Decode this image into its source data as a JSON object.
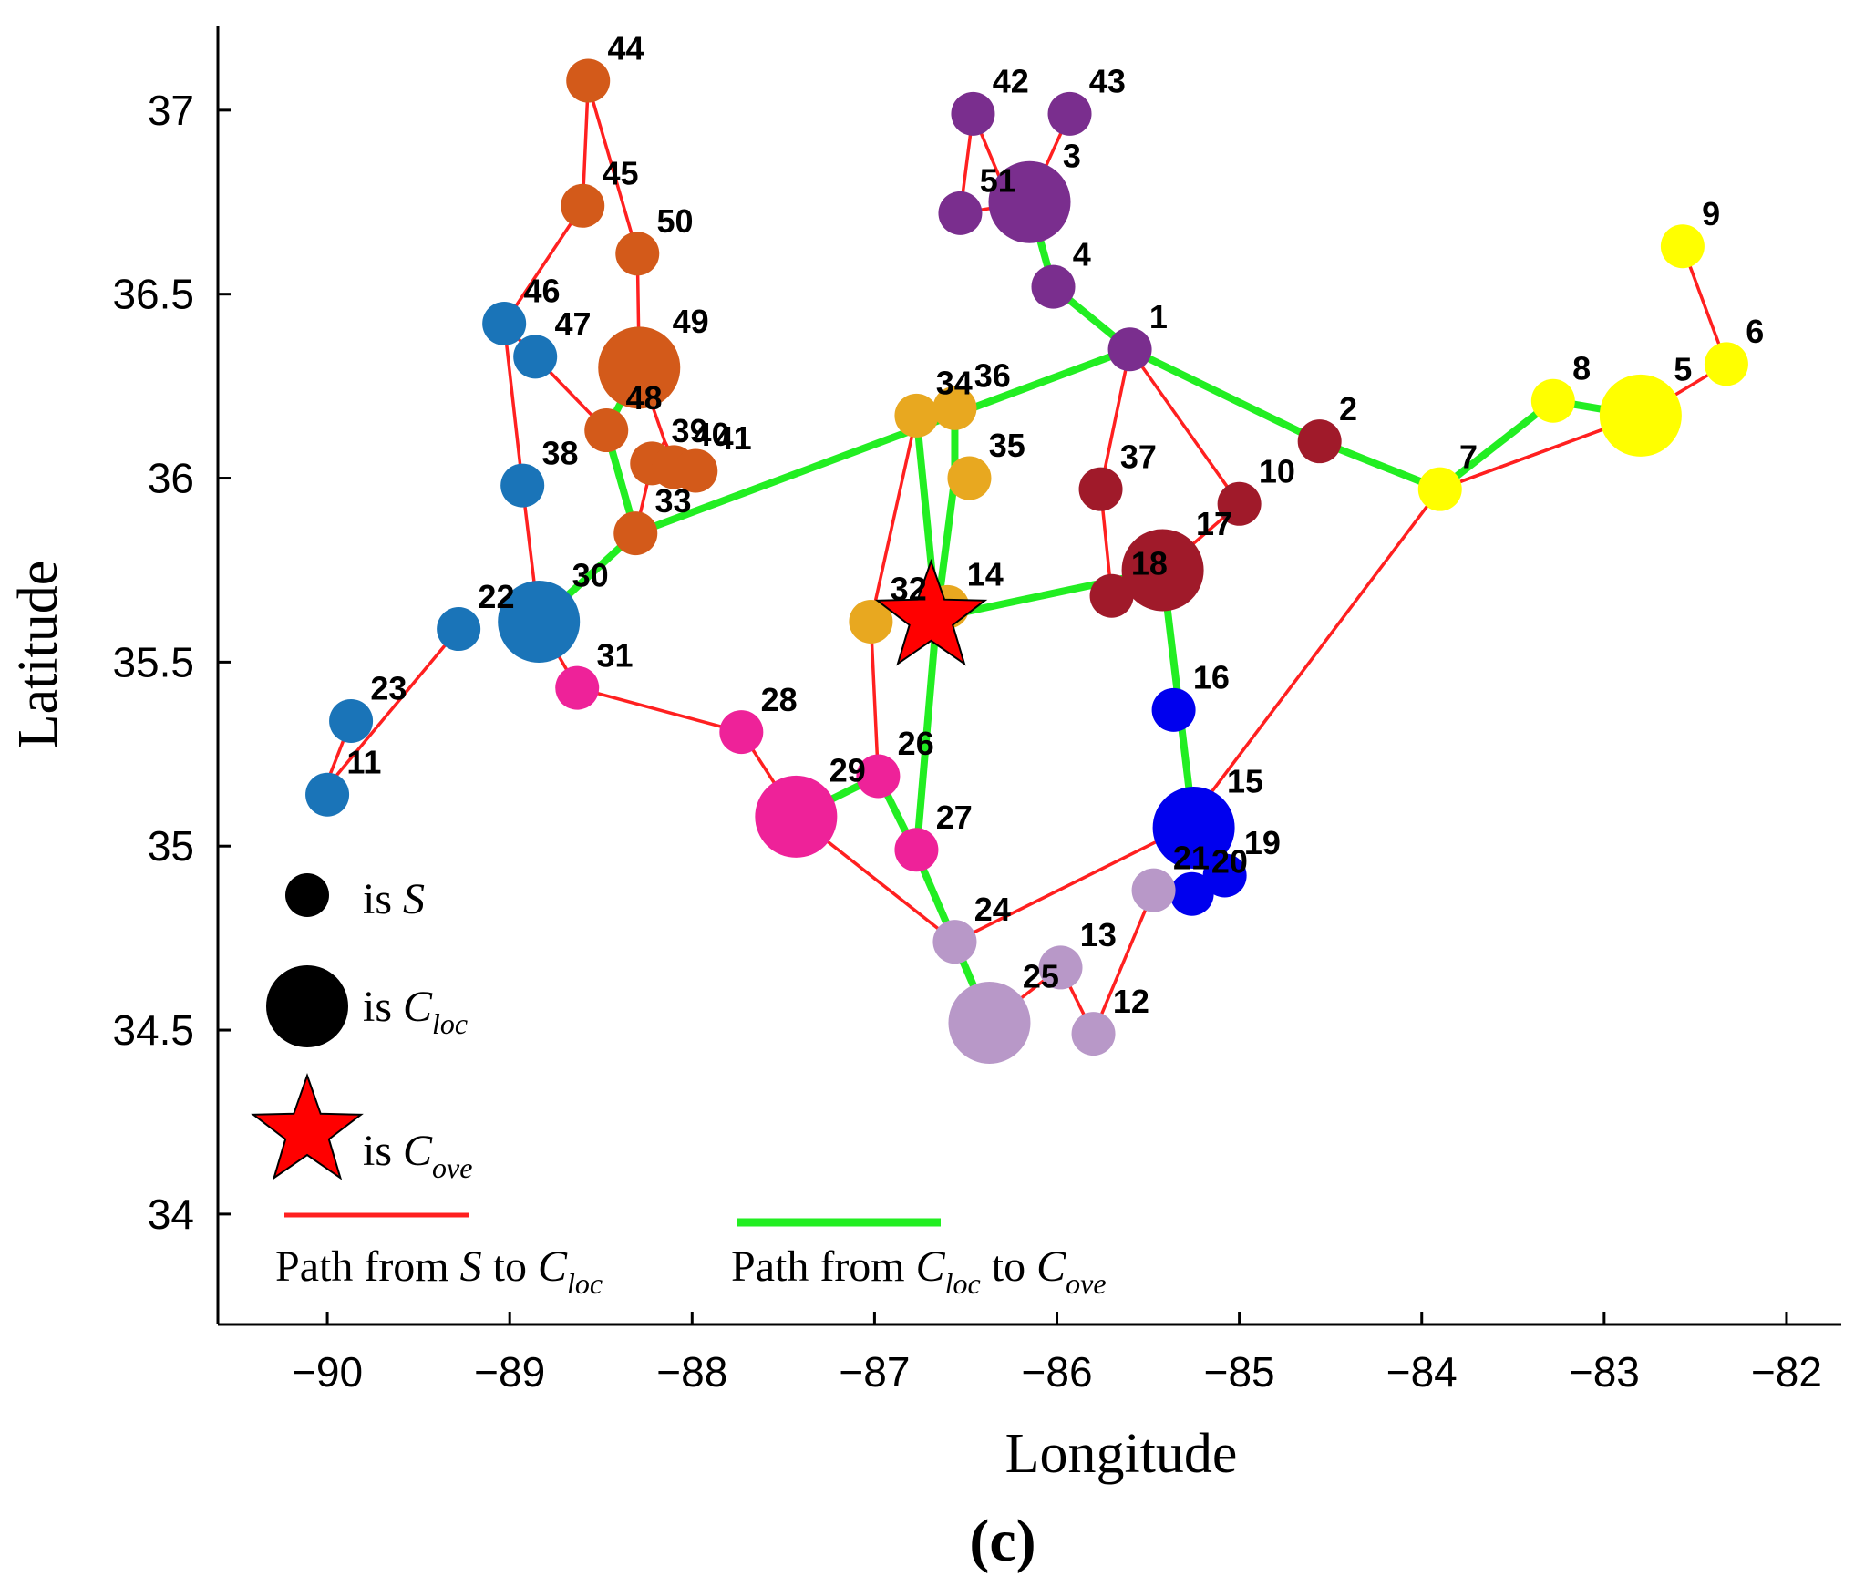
{
  "chart_data": {
    "type": "scatter",
    "title": "",
    "xlabel": "Longitude",
    "ylabel": "Latitude",
    "xlim": [
      -90.6,
      -81.7
    ],
    "ylim": [
      33.7,
      37.23
    ],
    "x_ticks": [
      -90,
      -89,
      -88,
      -87,
      -86,
      -85,
      -84,
      -83,
      -82
    ],
    "x_tick_labels": [
      "−90",
      "−89",
      "−88",
      "−87",
      "−86",
      "−85",
      "−84",
      "−83",
      "−82"
    ],
    "y_ticks": [
      34,
      34.5,
      35,
      35.5,
      36,
      36.5,
      37
    ],
    "y_tick_labels": [
      "34",
      "34.5",
      "35",
      "35.5",
      "36",
      "36.5",
      "37"
    ],
    "panel_label": "(c)",
    "nodes": [
      {
        "id": "1",
        "x": -85.6,
        "y": 36.35,
        "size": "S",
        "color": "#7a2e8e"
      },
      {
        "id": "2",
        "x": -84.56,
        "y": 36.1,
        "size": "S",
        "color": "#a01a2a"
      },
      {
        "id": "3",
        "x": -86.15,
        "y": 36.75,
        "size": "C",
        "color": "#7a2e8e"
      },
      {
        "id": "4",
        "x": -86.02,
        "y": 36.52,
        "size": "S",
        "color": "#7a2e8e"
      },
      {
        "id": "5",
        "x": -82.8,
        "y": 36.17,
        "size": "C",
        "color": "#ffff00"
      },
      {
        "id": "6",
        "x": -82.33,
        "y": 36.31,
        "size": "S",
        "color": "#ffff00"
      },
      {
        "id": "7",
        "x": -83.9,
        "y": 35.97,
        "size": "S",
        "color": "#ffff00"
      },
      {
        "id": "8",
        "x": -83.28,
        "y": 36.21,
        "size": "S",
        "color": "#ffff00"
      },
      {
        "id": "9",
        "x": -82.57,
        "y": 36.63,
        "size": "S",
        "color": "#ffff00"
      },
      {
        "id": "10",
        "x": -85.0,
        "y": 35.93,
        "size": "S",
        "color": "#a01a2a"
      },
      {
        "id": "11",
        "x": -90.0,
        "y": 35.14,
        "size": "S",
        "color": "#1a74b8"
      },
      {
        "id": "12",
        "x": -85.8,
        "y": 34.49,
        "size": "S",
        "color": "#b898c8"
      },
      {
        "id": "13",
        "x": -85.98,
        "y": 34.67,
        "size": "S",
        "color": "#b898c8"
      },
      {
        "id": "14",
        "x": -86.6,
        "y": 35.65,
        "size": "S",
        "color": "#e8a820"
      },
      {
        "id": "15",
        "x": -85.25,
        "y": 35.05,
        "size": "C",
        "color": "#0000ee"
      },
      {
        "id": "16",
        "x": -85.36,
        "y": 35.37,
        "size": "S",
        "color": "#0000ee"
      },
      {
        "id": "17",
        "x": -85.42,
        "y": 35.75,
        "size": "C",
        "color": "#a01a2a"
      },
      {
        "id": "18",
        "x": -85.7,
        "y": 35.68,
        "size": "S",
        "color": "#a01a2a"
      },
      {
        "id": "19",
        "x": -85.08,
        "y": 34.92,
        "size": "S",
        "color": "#0000ee"
      },
      {
        "id": "20",
        "x": -85.26,
        "y": 34.87,
        "size": "S",
        "color": "#0000ee"
      },
      {
        "id": "21",
        "x": -85.47,
        "y": 34.88,
        "size": "S",
        "color": "#b898c8"
      },
      {
        "id": "22",
        "x": -89.28,
        "y": 35.59,
        "size": "S",
        "color": "#1a74b8"
      },
      {
        "id": "23",
        "x": -89.87,
        "y": 35.34,
        "size": "S",
        "color": "#1a74b8"
      },
      {
        "id": "24",
        "x": -86.56,
        "y": 34.74,
        "size": "S",
        "color": "#b898c8"
      },
      {
        "id": "25",
        "x": -86.37,
        "y": 34.52,
        "size": "C",
        "color": "#b898c8"
      },
      {
        "id": "26",
        "x": -86.98,
        "y": 35.19,
        "size": "S",
        "color": "#ee2299"
      },
      {
        "id": "27",
        "x": -86.77,
        "y": 34.99,
        "size": "S",
        "color": "#ee2299"
      },
      {
        "id": "28",
        "x": -87.73,
        "y": 35.31,
        "size": "S",
        "color": "#ee2299"
      },
      {
        "id": "29",
        "x": -87.43,
        "y": 35.08,
        "size": "C",
        "color": "#ee2299"
      },
      {
        "id": "30",
        "x": -88.84,
        "y": 35.61,
        "size": "C",
        "color": "#1a74b8"
      },
      {
        "id": "31",
        "x": -88.63,
        "y": 35.43,
        "size": "S",
        "color": "#ee2299"
      },
      {
        "id": "32",
        "x": -87.02,
        "y": 35.61,
        "size": "S",
        "color": "#e8a820"
      },
      {
        "id": "33",
        "x": -88.31,
        "y": 35.85,
        "size": "S",
        "color": "#d35a1a"
      },
      {
        "id": "34",
        "x": -86.77,
        "y": 36.17,
        "size": "S",
        "color": "#e8a820"
      },
      {
        "id": "35",
        "x": -86.48,
        "y": 36.0,
        "size": "S",
        "color": "#e8a820"
      },
      {
        "id": "36",
        "x": -86.56,
        "y": 36.19,
        "size": "S",
        "color": "#e8a820"
      },
      {
        "id": "37",
        "x": -85.76,
        "y": 35.97,
        "size": "S",
        "color": "#a01a2a"
      },
      {
        "id": "38",
        "x": -88.93,
        "y": 35.98,
        "size": "S",
        "color": "#1a74b8"
      },
      {
        "id": "39",
        "x": -88.22,
        "y": 36.04,
        "size": "S",
        "color": "#d35a1a"
      },
      {
        "id": "40",
        "x": -88.1,
        "y": 36.03,
        "size": "S",
        "color": "#d35a1a"
      },
      {
        "id": "41",
        "x": -87.98,
        "y": 36.02,
        "size": "S",
        "color": "#d35a1a"
      },
      {
        "id": "42",
        "x": -86.46,
        "y": 36.99,
        "size": "S",
        "color": "#7a2e8e"
      },
      {
        "id": "43",
        "x": -85.93,
        "y": 36.99,
        "size": "S",
        "color": "#7a2e8e"
      },
      {
        "id": "44",
        "x": -88.57,
        "y": 37.08,
        "size": "S",
        "color": "#d35a1a"
      },
      {
        "id": "45",
        "x": -88.6,
        "y": 36.74,
        "size": "S",
        "color": "#d35a1a"
      },
      {
        "id": "46",
        "x": -89.03,
        "y": 36.42,
        "size": "S",
        "color": "#1a74b8"
      },
      {
        "id": "47",
        "x": -88.86,
        "y": 36.33,
        "size": "S",
        "color": "#1a74b8"
      },
      {
        "id": "48",
        "x": -88.47,
        "y": 36.13,
        "size": "S",
        "color": "#d35a1a"
      },
      {
        "id": "49",
        "x": -88.29,
        "y": 36.3,
        "size": "C",
        "color": "#d35a1a"
      },
      {
        "id": "50",
        "x": -88.3,
        "y": 36.61,
        "size": "S",
        "color": "#d35a1a"
      },
      {
        "id": "51",
        "x": -86.53,
        "y": 36.72,
        "size": "S",
        "color": "#7a2e8e"
      }
    ],
    "star": {
      "x": -86.69,
      "y": 35.62,
      "color": "#ff0000"
    },
    "red_paths": [
      [
        [
          -88.57,
          37.07
        ],
        [
          -88.6,
          36.74
        ],
        [
          -89.03,
          36.42
        ],
        [
          -88.86,
          36.33
        ],
        [
          -88.47,
          36.13
        ]
      ],
      [
        [
          -88.57,
          37.07
        ],
        [
          -88.3,
          36.61
        ],
        [
          -88.29,
          36.3
        ],
        [
          -88.15,
          36.1
        ],
        [
          -88.1,
          36.05
        ],
        [
          -87.98,
          36.02
        ]
      ],
      [
        [
          -88.15,
          36.1
        ],
        [
          -88.22,
          36.04
        ],
        [
          -88.31,
          35.85
        ]
      ],
      [
        [
          -89.03,
          36.42
        ],
        [
          -88.93,
          35.98
        ],
        [
          -88.84,
          35.61
        ],
        [
          -88.63,
          35.43
        ],
        [
          -87.73,
          35.31
        ],
        [
          -87.43,
          35.08
        ],
        [
          -86.56,
          34.74
        ],
        [
          -85.3,
          35.05
        ],
        [
          -83.9,
          35.97
        ],
        [
          -82.8,
          36.17
        ],
        [
          -82.33,
          36.31
        ],
        [
          -82.57,
          36.63
        ]
      ],
      [
        [
          -83.9,
          35.97
        ],
        [
          -82.8,
          36.17
        ]
      ],
      [
        [
          -89.28,
          35.59
        ],
        [
          -90.02,
          35.15
        ],
        [
          -89.87,
          35.34
        ]
      ],
      [
        [
          -86.77,
          36.17
        ],
        [
          -86.56,
          36.22
        ]
      ],
      [
        [
          -86.77,
          36.17
        ],
        [
          -87.02,
          35.61
        ],
        [
          -86.98,
          35.19
        ],
        [
          -86.77,
          34.99
        ],
        [
          -86.56,
          34.74
        ]
      ],
      [
        [
          -86.37,
          34.52
        ],
        [
          -85.98,
          34.67
        ],
        [
          -85.8,
          34.49
        ],
        [
          -85.47,
          34.88
        ],
        [
          -85.26,
          34.87
        ],
        [
          -85.08,
          34.92
        ],
        [
          -85.3,
          35.05
        ]
      ],
      [
        [
          -85.6,
          36.35
        ],
        [
          -85.76,
          35.97
        ],
        [
          -85.7,
          35.68
        ]
      ],
      [
        [
          -85.6,
          36.35
        ],
        [
          -85.0,
          35.93
        ],
        [
          -85.42,
          35.75
        ]
      ],
      [
        [
          -86.46,
          36.99
        ],
        [
          -86.53,
          36.72
        ],
        [
          -86.15,
          36.75
        ],
        [
          -85.93,
          36.99
        ]
      ],
      [
        [
          -86.46,
          36.99
        ],
        [
          -86.3,
          36.8
        ]
      ]
    ],
    "green_paths": [
      [
        [
          -86.15,
          36.75
        ],
        [
          -86.02,
          36.52
        ],
        [
          -85.6,
          36.35
        ],
        [
          -84.56,
          36.1
        ],
        [
          -83.9,
          35.97
        ],
        [
          -83.28,
          36.21
        ],
        [
          -82.8,
          36.17
        ]
      ],
      [
        [
          -85.6,
          36.35
        ],
        [
          -88.31,
          35.85
        ],
        [
          -88.84,
          35.61
        ]
      ],
      [
        [
          -88.31,
          35.85
        ],
        [
          -88.47,
          36.13
        ],
        [
          -88.29,
          36.3
        ]
      ],
      [
        [
          -86.77,
          36.17
        ],
        [
          -86.66,
          35.62
        ],
        [
          -86.56,
          36.0
        ],
        [
          -86.56,
          36.2
        ]
      ],
      [
        [
          -86.66,
          35.62
        ],
        [
          -85.42,
          35.75
        ],
        [
          -85.25,
          35.05
        ]
      ],
      [
        [
          -86.66,
          35.62
        ],
        [
          -86.77,
          34.98
        ],
        [
          -86.98,
          35.19
        ],
        [
          -87.43,
          35.08
        ]
      ],
      [
        [
          -86.77,
          34.98
        ],
        [
          -86.37,
          34.52
        ]
      ]
    ],
    "legend": {
      "s_label": "is ",
      "s_sym": "S",
      "cloc_label": "is ",
      "cloc_sym": "C",
      "cloc_sub": "loc",
      "cove_label": "is ",
      "cove_sym": "C",
      "cove_sub": "ove",
      "red_label_a": "Path from ",
      "red_label_b": "S",
      "red_label_c": " to ",
      "red_label_d": "C",
      "red_label_e": "loc",
      "green_label_a": "Path from ",
      "green_label_b": "C",
      "green_label_c": "loc",
      "green_label_d": " to ",
      "green_label_e": "C",
      "green_label_f": "ove",
      "placement": "bottom-left"
    },
    "colors": {
      "red_path": "#ff2020",
      "green_path": "#22ee22",
      "legend_marker": "#000000"
    }
  }
}
